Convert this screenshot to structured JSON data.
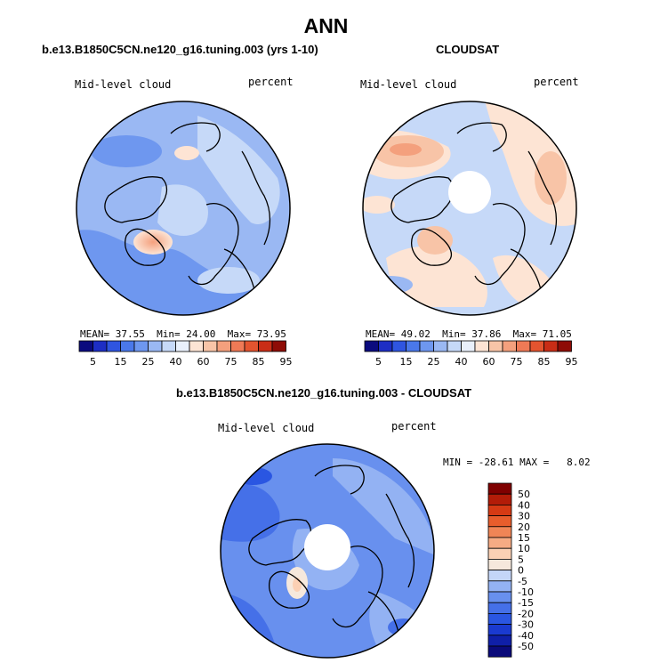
{
  "page": {
    "title": "ANN"
  },
  "panels": [
    {
      "title": "b.e13.B1850C5CN.ne120_g16.tuning.003 (yrs 1-10)",
      "variable": "Mid-level cloud",
      "units": "percent",
      "stats": {
        "mean_label": "MEAN=",
        "mean": "37.55",
        "min_label": "Min=",
        "min": "24.00",
        "max_label": "Max=",
        "max": "73.95"
      }
    },
    {
      "title": "CLOUDSAT",
      "variable": "Mid-level cloud",
      "units": "percent",
      "stats": {
        "mean_label": "MEAN=",
        "mean": "49.02",
        "min_label": "Min=",
        "min": "37.86",
        "max_label": "Max=",
        "max": "71.05"
      }
    },
    {
      "title": "b.e13.B1850C5CN.ne120_g16.tuning.003 - CLOUDSAT",
      "variable": "Mid-level cloud",
      "units": "percent",
      "stats_text": "MIN = -28.61 MAX =   8.02"
    }
  ],
  "colorbar_horizontal": {
    "colors": [
      "#0b0b7e",
      "#1d2ec4",
      "#2f55e0",
      "#4a78ea",
      "#6e97ef",
      "#9ab8f3",
      "#c6d9f8",
      "#e9f0fb",
      "#fde4d4",
      "#f8c4a7",
      "#f4a07d",
      "#ef7a56",
      "#e3542f",
      "#c92d16",
      "#8e0c06"
    ],
    "labels": [
      "5",
      "15",
      "25",
      "40",
      "60",
      "75",
      "85",
      "95"
    ]
  },
  "colorbar_vertical": {
    "colors": [
      "#0a0a7a",
      "#0f1fa8",
      "#1a3ad0",
      "#2a56e2",
      "#4570e8",
      "#6890ee",
      "#93b2f3",
      "#c4d6f8",
      "#f6e8dc",
      "#fbd0b4",
      "#f6ab84",
      "#f08556",
      "#e85d2c",
      "#d63a14",
      "#b31c08",
      "#7f0000"
    ],
    "labels": [
      "50",
      "40",
      "30",
      "20",
      "15",
      "10",
      "5",
      "0",
      "-5",
      "-10",
      "-15",
      "-20",
      "-30",
      "-40",
      "-50"
    ]
  }
}
